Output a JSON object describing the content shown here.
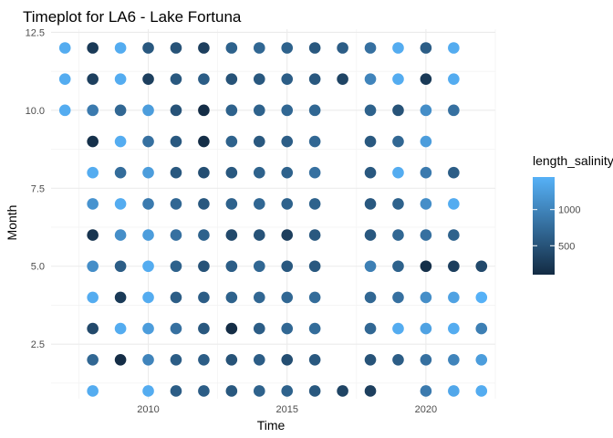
{
  "chart_data": {
    "type": "scatter",
    "title": "Timeplot for LA6 - Lake Fortuna",
    "xlabel": "Time",
    "ylabel": "Month",
    "xlim": [
      2006.5,
      2022.5
    ],
    "ylim": [
      0.75,
      12.6
    ],
    "x_ticks": [
      2010,
      2015,
      2020
    ],
    "x_tick_labels": [
      "2010",
      "2015",
      "2020"
    ],
    "y_ticks": [
      2.5,
      5.0,
      7.5,
      10.0,
      12.5
    ],
    "y_tick_labels": [
      "2.5",
      "5.0",
      "7.5",
      "10.0",
      "12.5"
    ],
    "grid": true,
    "legend": {
      "title": "length_salinity",
      "position": "right",
      "color_min": 100,
      "color_max": 1450,
      "color_low": "#132B43",
      "color_high": "#56B1F7",
      "ticks": [
        500,
        1000
      ],
      "tick_labels": [
        "500",
        "1000"
      ]
    },
    "series": [
      {
        "points": [
          [
            2007,
            12,
            1400
          ],
          [
            2008,
            12,
            250
          ],
          [
            2009,
            12,
            1400
          ],
          [
            2010,
            12,
            550
          ],
          [
            2011,
            12,
            500
          ],
          [
            2012,
            12,
            300
          ],
          [
            2013,
            12,
            650
          ],
          [
            2014,
            12,
            700
          ],
          [
            2015,
            12,
            650
          ],
          [
            2016,
            12,
            550
          ],
          [
            2017,
            12,
            600
          ],
          [
            2018,
            12,
            800
          ],
          [
            2019,
            12,
            1400
          ],
          [
            2020,
            12,
            600
          ],
          [
            2021,
            12,
            1400
          ],
          [
            2007,
            11,
            1400
          ],
          [
            2008,
            11,
            300
          ],
          [
            2009,
            11,
            1400
          ],
          [
            2010,
            11,
            300
          ],
          [
            2011,
            11,
            550
          ],
          [
            2012,
            11,
            600
          ],
          [
            2013,
            11,
            500
          ],
          [
            2014,
            11,
            550
          ],
          [
            2015,
            11,
            600
          ],
          [
            2016,
            11,
            550
          ],
          [
            2017,
            11,
            350
          ],
          [
            2018,
            11,
            1000
          ],
          [
            2019,
            11,
            1400
          ],
          [
            2020,
            11,
            250
          ],
          [
            2021,
            11,
            1400
          ],
          [
            2007,
            10,
            1400
          ],
          [
            2008,
            10,
            900
          ],
          [
            2009,
            10,
            700
          ],
          [
            2010,
            10,
            1250
          ],
          [
            2011,
            10,
            500
          ],
          [
            2012,
            10,
            120
          ],
          [
            2013,
            10,
            650
          ],
          [
            2014,
            10,
            650
          ],
          [
            2015,
            10,
            700
          ],
          [
            2016,
            10,
            700
          ],
          [
            2018,
            10,
            650
          ],
          [
            2019,
            10,
            500
          ],
          [
            2020,
            10,
            1100
          ],
          [
            2021,
            10,
            800
          ],
          [
            2008,
            9,
            150
          ],
          [
            2009,
            9,
            1400
          ],
          [
            2010,
            9,
            800
          ],
          [
            2011,
            9,
            550
          ],
          [
            2012,
            9,
            120
          ],
          [
            2013,
            9,
            650
          ],
          [
            2014,
            9,
            550
          ],
          [
            2015,
            9,
            600
          ],
          [
            2016,
            9,
            700
          ],
          [
            2018,
            9,
            550
          ],
          [
            2019,
            9,
            700
          ],
          [
            2020,
            9,
            1250
          ],
          [
            2008,
            8,
            1400
          ],
          [
            2009,
            8,
            750
          ],
          [
            2010,
            8,
            1250
          ],
          [
            2011,
            8,
            550
          ],
          [
            2012,
            8,
            450
          ],
          [
            2013,
            8,
            550
          ],
          [
            2014,
            8,
            650
          ],
          [
            2015,
            8,
            650
          ],
          [
            2016,
            8,
            800
          ],
          [
            2018,
            8,
            550
          ],
          [
            2019,
            8,
            1400
          ],
          [
            2020,
            8,
            900
          ],
          [
            2021,
            8,
            600
          ],
          [
            2008,
            7,
            1150
          ],
          [
            2009,
            7,
            1400
          ],
          [
            2010,
            7,
            900
          ],
          [
            2011,
            7,
            700
          ],
          [
            2012,
            7,
            550
          ],
          [
            2013,
            7,
            650
          ],
          [
            2014,
            7,
            700
          ],
          [
            2015,
            7,
            650
          ],
          [
            2016,
            7,
            650
          ],
          [
            2018,
            7,
            550
          ],
          [
            2019,
            7,
            650
          ],
          [
            2020,
            7,
            1100
          ],
          [
            2021,
            7,
            1400
          ],
          [
            2008,
            6,
            200
          ],
          [
            2009,
            6,
            1100
          ],
          [
            2010,
            6,
            1250
          ],
          [
            2011,
            6,
            800
          ],
          [
            2012,
            6,
            650
          ],
          [
            2013,
            6,
            400
          ],
          [
            2014,
            6,
            500
          ],
          [
            2015,
            6,
            300
          ],
          [
            2016,
            6,
            550
          ],
          [
            2018,
            6,
            550
          ],
          [
            2019,
            6,
            700
          ],
          [
            2020,
            6,
            800
          ],
          [
            2021,
            6,
            650
          ],
          [
            2008,
            5,
            1100
          ],
          [
            2009,
            5,
            600
          ],
          [
            2010,
            5,
            1400
          ],
          [
            2011,
            5,
            650
          ],
          [
            2012,
            5,
            500
          ],
          [
            2013,
            5,
            600
          ],
          [
            2014,
            5,
            700
          ],
          [
            2015,
            5,
            550
          ],
          [
            2016,
            5,
            550
          ],
          [
            2018,
            5,
            950
          ],
          [
            2019,
            5,
            650
          ],
          [
            2020,
            5,
            150
          ],
          [
            2021,
            5,
            300
          ],
          [
            2022,
            5,
            400
          ],
          [
            2008,
            4,
            1400
          ],
          [
            2009,
            4,
            250
          ],
          [
            2010,
            4,
            1400
          ],
          [
            2011,
            4,
            600
          ],
          [
            2012,
            4,
            600
          ],
          [
            2013,
            4,
            650
          ],
          [
            2014,
            4,
            700
          ],
          [
            2015,
            4,
            700
          ],
          [
            2016,
            4,
            750
          ],
          [
            2018,
            4,
            700
          ],
          [
            2019,
            4,
            800
          ],
          [
            2020,
            4,
            1100
          ],
          [
            2021,
            4,
            1300
          ],
          [
            2022,
            4,
            1450
          ],
          [
            2008,
            3,
            400
          ],
          [
            2009,
            3,
            1400
          ],
          [
            2010,
            3,
            1250
          ],
          [
            2011,
            3,
            800
          ],
          [
            2012,
            3,
            550
          ],
          [
            2013,
            3,
            120
          ],
          [
            2014,
            3,
            600
          ],
          [
            2015,
            3,
            700
          ],
          [
            2016,
            3,
            750
          ],
          [
            2018,
            3,
            700
          ],
          [
            2019,
            3,
            1400
          ],
          [
            2020,
            3,
            1300
          ],
          [
            2021,
            3,
            1400
          ],
          [
            2022,
            3,
            950
          ],
          [
            2008,
            2,
            700
          ],
          [
            2009,
            2,
            120
          ],
          [
            2010,
            2,
            1000
          ],
          [
            2011,
            2,
            600
          ],
          [
            2012,
            2,
            600
          ],
          [
            2013,
            2,
            500
          ],
          [
            2014,
            2,
            600
          ],
          [
            2015,
            2,
            450
          ],
          [
            2016,
            2,
            550
          ],
          [
            2018,
            2,
            500
          ],
          [
            2019,
            2,
            600
          ],
          [
            2020,
            2,
            800
          ],
          [
            2021,
            2,
            1000
          ],
          [
            2022,
            2,
            1250
          ],
          [
            2008,
            1,
            1400
          ],
          [
            2010,
            1,
            1400
          ],
          [
            2011,
            1,
            600
          ],
          [
            2012,
            1,
            600
          ],
          [
            2013,
            1,
            550
          ],
          [
            2014,
            1,
            650
          ],
          [
            2015,
            1,
            650
          ],
          [
            2016,
            1,
            550
          ],
          [
            2017,
            1,
            350
          ],
          [
            2018,
            1,
            300
          ],
          [
            2020,
            1,
            900
          ],
          [
            2021,
            1,
            1350
          ],
          [
            2022,
            1,
            1400
          ]
        ]
      }
    ]
  }
}
